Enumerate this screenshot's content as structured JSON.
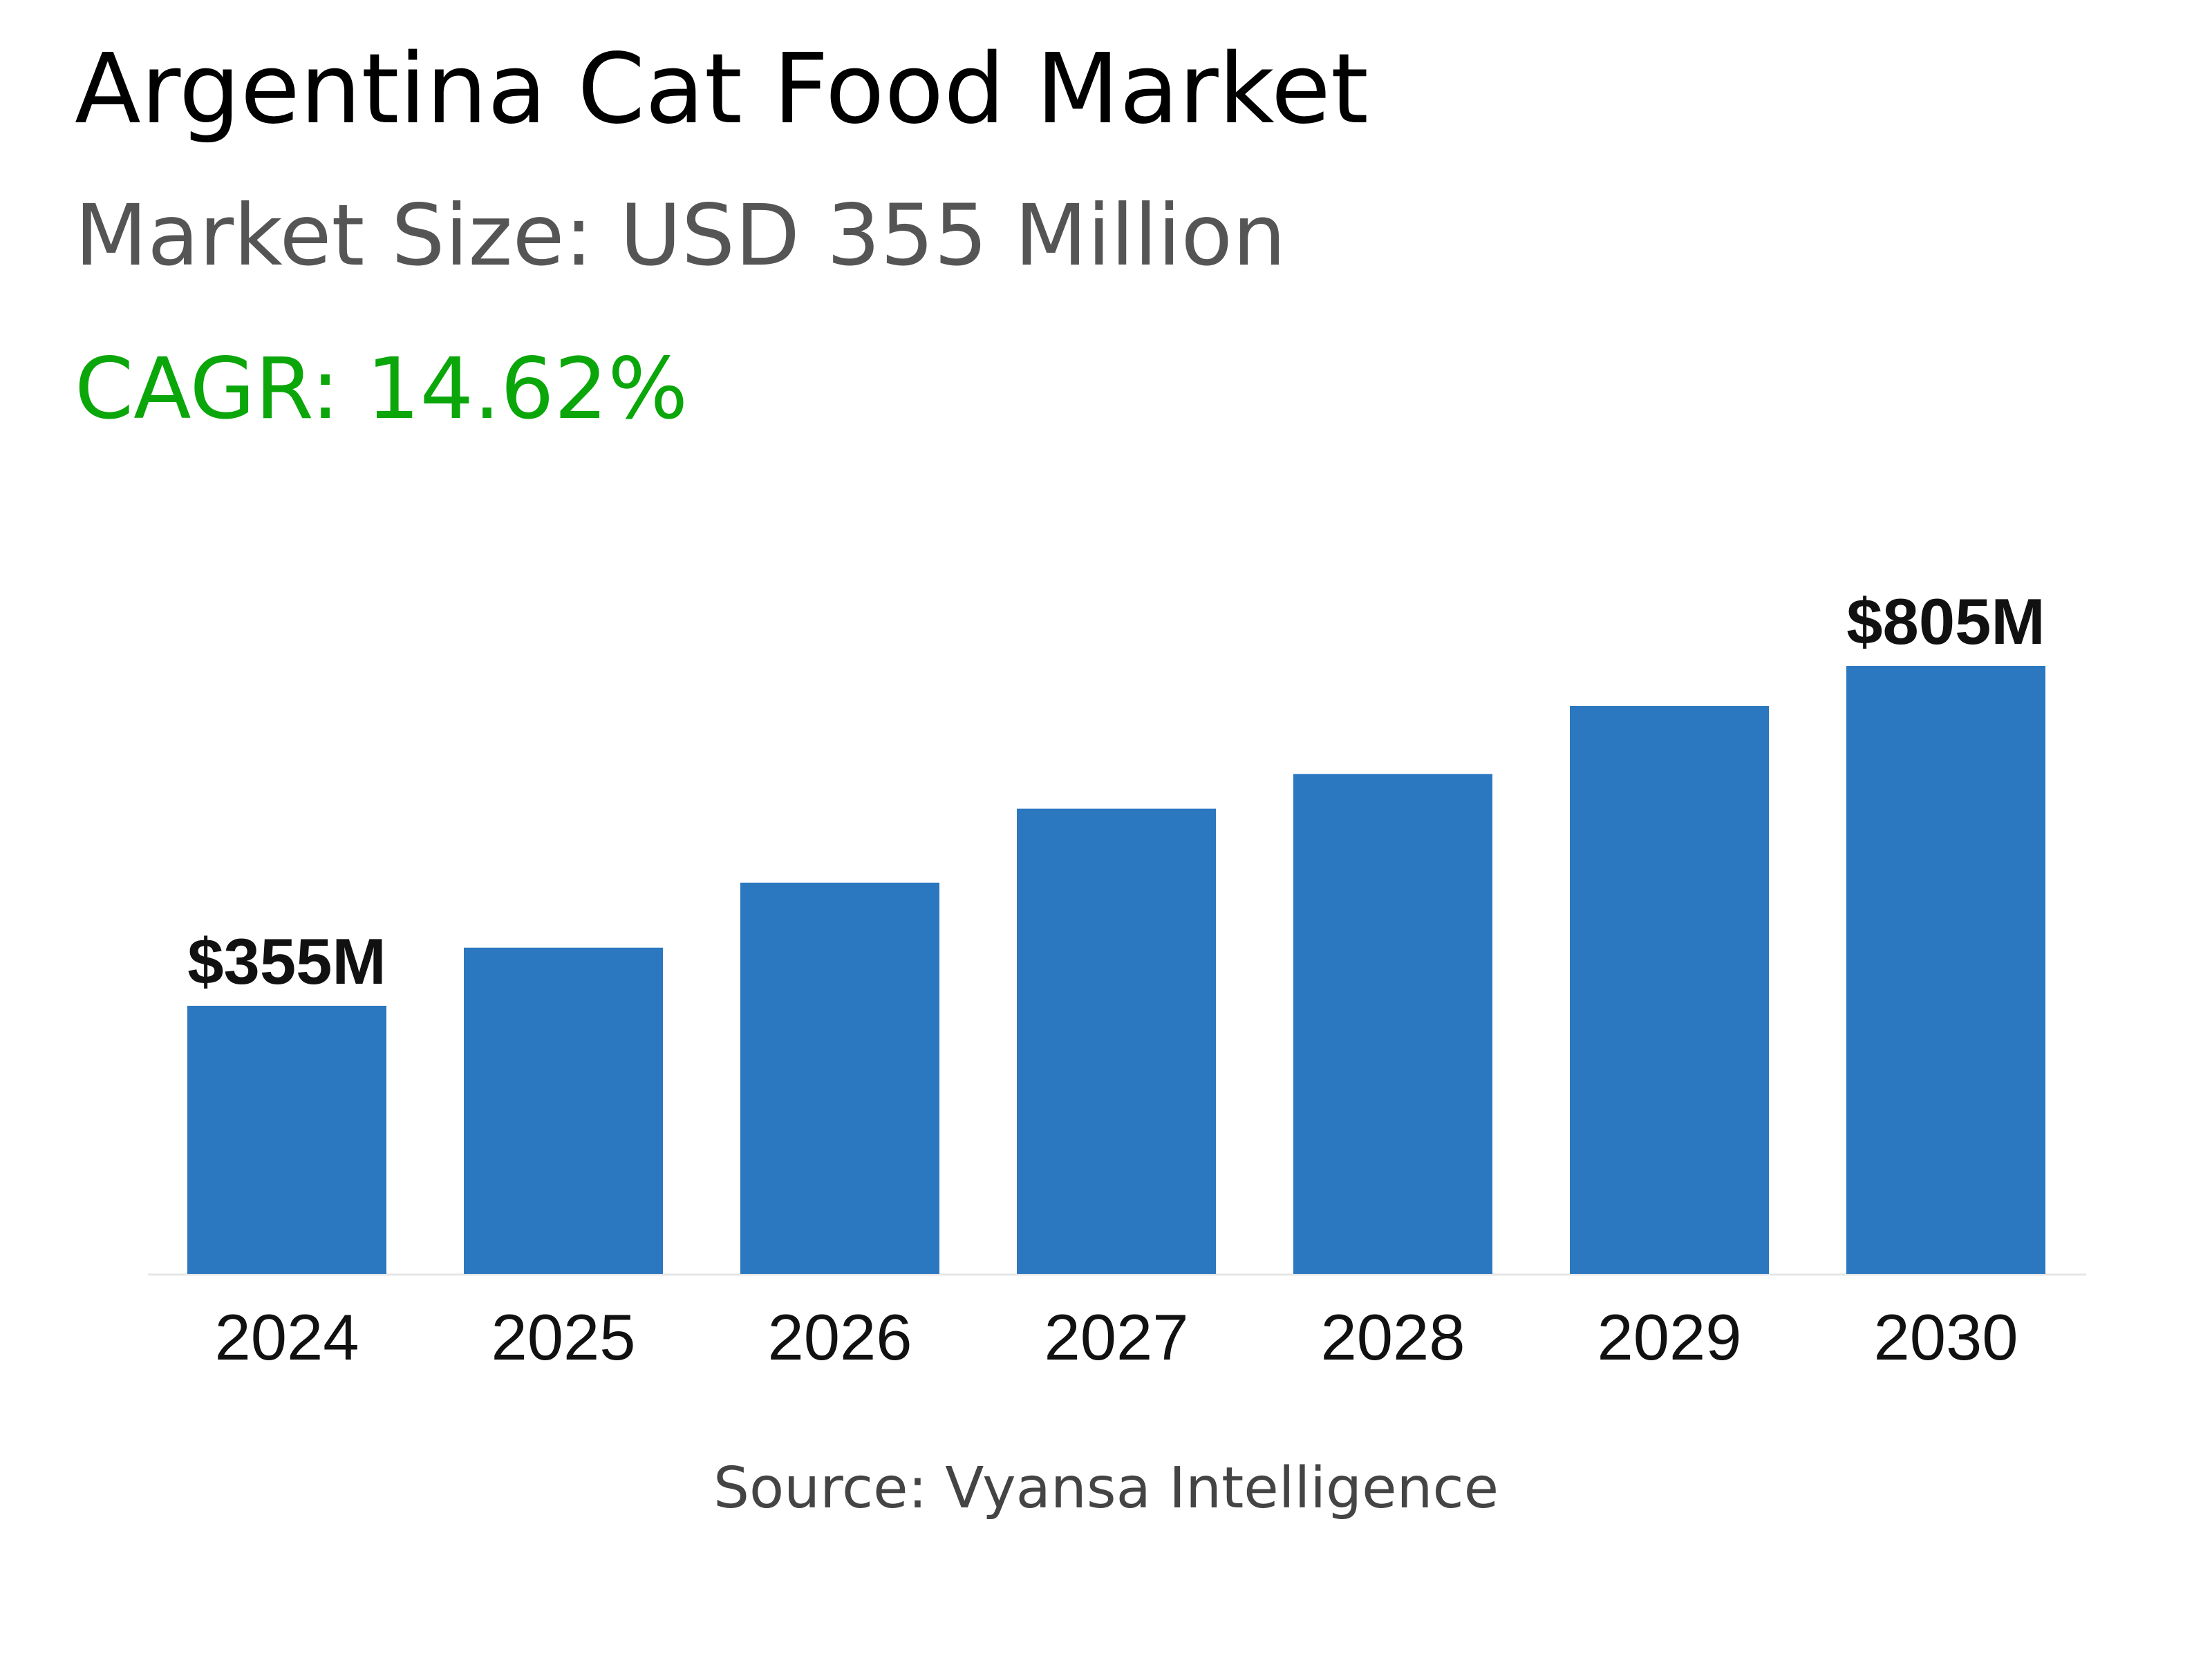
{
  "header": {
    "title": "Argentina Cat Food Market",
    "market_size": "Market Size: USD 355 Million",
    "cagr": "CAGR: 14.62%"
  },
  "footer": {
    "source": "Source: Vyansa Intelligence"
  },
  "colors": {
    "bar": "#2c78c0",
    "cagr": "#0aa60a",
    "baseline": "#e6e6e6"
  },
  "chart_data": {
    "type": "bar",
    "categories": [
      "2024",
      "2025",
      "2026",
      "2027",
      "2028",
      "2029",
      "2030"
    ],
    "values": [
      355,
      432,
      518,
      616,
      662,
      752,
      805
    ],
    "data_labels": [
      "$355M",
      "",
      "",
      "",
      "",
      "",
      "$805M"
    ],
    "title": "",
    "xlabel": "",
    "ylabel": "",
    "ylim": [
      0,
      805
    ],
    "grid": false,
    "legend": "none"
  }
}
